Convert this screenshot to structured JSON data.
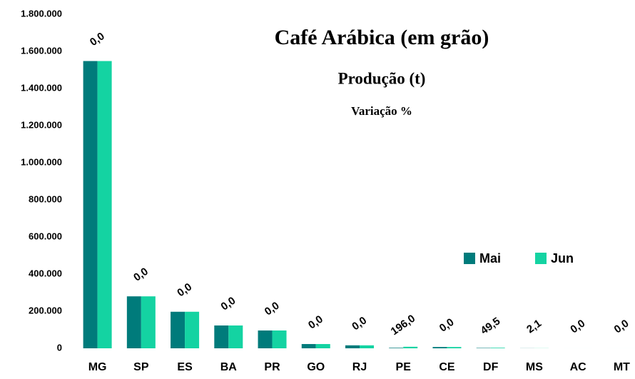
{
  "chart_data": {
    "type": "bar",
    "title": "Café Arábica (em grão)",
    "subtitle": "Produção (t)",
    "annotation_title": "Variação %",
    "categories": [
      "MG",
      "SP",
      "ES",
      "BA",
      "PR",
      "GO",
      "RJ",
      "PE",
      "CE",
      "DF",
      "MS",
      "AC",
      "MT"
    ],
    "series": [
      {
        "name": "Mai",
        "color": "#007b7b",
        "values": [
          1548000,
          280000,
          197000,
          123000,
          96000,
          23000,
          16000,
          2800,
          7000,
          2000,
          500,
          50,
          50
        ]
      },
      {
        "name": "Jun",
        "color": "#14d3a2",
        "values": [
          1548000,
          280000,
          197000,
          123000,
          96000,
          23000,
          16000,
          8300,
          7000,
          2990,
          510,
          50,
          50
        ]
      }
    ],
    "variation": {
      "values": [
        0,
        0,
        0,
        0,
        0,
        0,
        0,
        196,
        0,
        49.5,
        2.1,
        0,
        0
      ],
      "value_labels": [
        "0,0",
        "0,0",
        "0,0",
        "0,0",
        "0,0",
        "0,0",
        "0,0",
        "196,0",
        "0,0",
        "49,5",
        "2,1",
        "0,0",
        "0,0"
      ]
    },
    "ylim": [
      0,
      1800000
    ],
    "yticks": [
      0,
      {
        "value": 200000,
        "label": "200.000"
      },
      {
        "value": 400000,
        "label": "400.000"
      },
      {
        "value": 600000,
        "label": "600.000"
      },
      {
        "value": 800000,
        "label": "800.000"
      },
      {
        "value": 1000000,
        "label": "1.000.000"
      },
      {
        "value": 1200000,
        "label": "1.200.000"
      },
      {
        "value": 1400000,
        "label": "1.400.000"
      },
      {
        "value": 1600000,
        "label": "1.600.000"
      },
      {
        "value": 1800000,
        "label": "1.800.000"
      }
    ],
    "grid": false,
    "legend": "right"
  }
}
